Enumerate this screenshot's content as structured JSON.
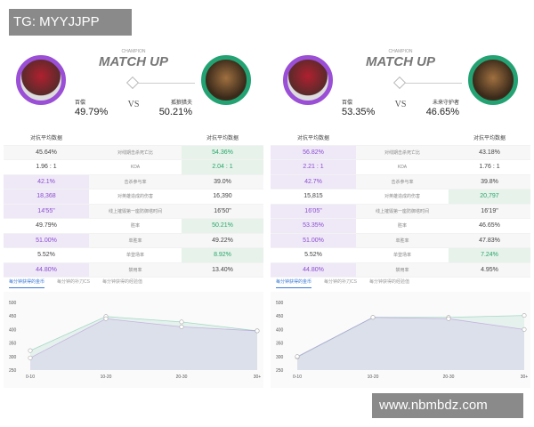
{
  "watermark_top": "TG: MYYJJPP",
  "watermark_bottom": "www.nbmbdz.com",
  "colors": {
    "left": "#9a4fd6",
    "right": "#23a373"
  },
  "panels": [
    {
      "champion_caption": "CHAMPION",
      "title": "MATCH UP",
      "vs": "VS",
      "left": {
        "name": "百偿",
        "win_rate": "49.79%"
      },
      "right": {
        "name": "孤狼猎夫",
        "win_rate": "50.21%"
      },
      "table_header": "对抗平均数据",
      "rows": [
        {
          "label": "对线期击杀死亡比",
          "left": "45.64%",
          "right": "54.36%",
          "hl": "right"
        },
        {
          "label": "KDA",
          "left": "1.96 : 1",
          "right": "2.04 : 1",
          "hl": "right"
        },
        {
          "label": "击杀参与率",
          "left": "42.1%",
          "right": "39.0%",
          "hl": "left"
        },
        {
          "label": "对英雄造成的伤害",
          "left": "18,368",
          "right": "16,390",
          "hl": "left"
        },
        {
          "label": "线上摧毁第一座防御塔时间",
          "left": "14'55\"",
          "right": "16'50\"",
          "hl": "left"
        },
        {
          "label": "胜率",
          "left": "49.79%",
          "right": "50.21%",
          "hl": "right"
        },
        {
          "label": "单胜率",
          "left": "51.00%",
          "right": "49.22%",
          "hl": "left"
        },
        {
          "label": "单登场率",
          "left": "5.52%",
          "right": "8.92%",
          "hl": "right"
        },
        {
          "label": "禁用率",
          "left": "44.80%",
          "right": "13.40%",
          "hl": "left"
        }
      ],
      "tabs": [
        "每分钟获得的金币",
        "每分钟的补刀CS",
        "每分钟获得的经验值"
      ],
      "chart_data": {
        "type": "area",
        "categories": [
          "0-10",
          "10-20",
          "20-30",
          "30+"
        ],
        "yticks": [
          250,
          300,
          350,
          400,
          450,
          500
        ],
        "ylim": [
          250,
          500
        ],
        "series": [
          {
            "color": "#9a4fd6",
            "values": [
              295,
              440,
              410,
              395
            ]
          },
          {
            "color": "#23a373",
            "values": [
              322,
              448,
              428,
              395
            ]
          }
        ]
      }
    },
    {
      "champion_caption": "CHAMPION",
      "title": "MATCH UP",
      "vs": "VS",
      "left": {
        "name": "百偿",
        "win_rate": "53.35%"
      },
      "right": {
        "name": "未来守护者",
        "win_rate": "46.65%"
      },
      "table_header": "对抗平均数据",
      "rows": [
        {
          "label": "对线期击杀死亡比",
          "left": "56.82%",
          "right": "43.18%",
          "hl": "left"
        },
        {
          "label": "KDA",
          "left": "2.21 : 1",
          "right": "1.76 : 1",
          "hl": "left"
        },
        {
          "label": "击杀参与率",
          "left": "42.7%",
          "right": "39.8%",
          "hl": "left"
        },
        {
          "label": "对英雄造成的伤害",
          "left": "15,815",
          "right": "20,797",
          "hl": "right"
        },
        {
          "label": "线上摧毁第一座防御塔时间",
          "left": "16'05\"",
          "right": "16'19\"",
          "hl": "left"
        },
        {
          "label": "胜率",
          "left": "53.35%",
          "right": "46.65%",
          "hl": "left"
        },
        {
          "label": "单胜率",
          "left": "51.00%",
          "right": "47.83%",
          "hl": "left"
        },
        {
          "label": "单登场率",
          "left": "5.52%",
          "right": "7.24%",
          "hl": "right"
        },
        {
          "label": "禁用率",
          "left": "44.80%",
          "right": "4.95%",
          "hl": "left"
        }
      ],
      "tabs": [
        "每分钟获得的金币",
        "每分钟的补刀CS",
        "每分钟获得的经验值"
      ],
      "chart_data": {
        "type": "area",
        "categories": [
          "0-10",
          "10-20",
          "20-30",
          "30+"
        ],
        "yticks": [
          250,
          300,
          350,
          400,
          450,
          500
        ],
        "ylim": [
          250,
          500
        ],
        "series": [
          {
            "color": "#9a4fd6",
            "values": [
              300,
              445,
              440,
              400
            ]
          },
          {
            "color": "#23a373",
            "values": [
              298,
              445,
              445,
              452
            ]
          }
        ]
      }
    }
  ]
}
